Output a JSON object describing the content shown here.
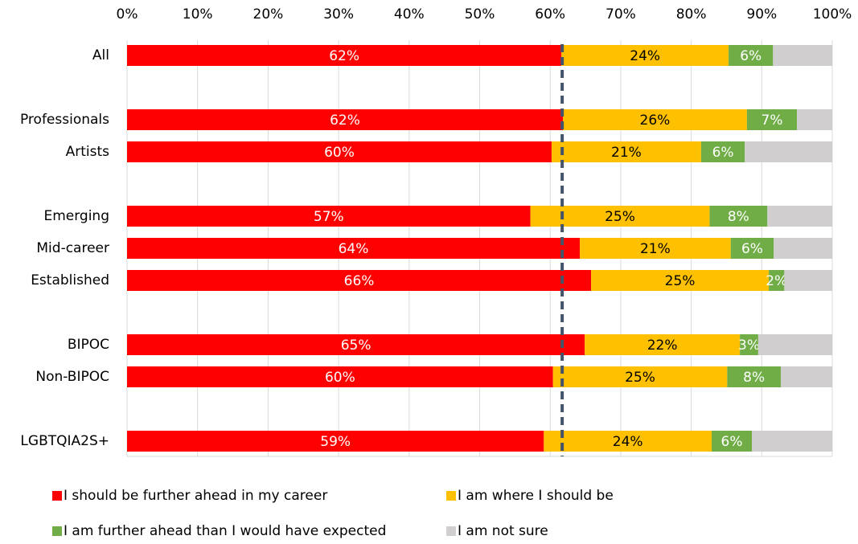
{
  "chart_data": {
    "type": "stacked-bar-horizontal",
    "categories": [
      "All",
      null,
      "Professionals",
      "Artists",
      null,
      "Emerging",
      "Mid-career",
      "Established",
      null,
      "BIPOC",
      "Non-BIPOC",
      null,
      "LGBTQIA2S+"
    ],
    "series": [
      {
        "name": "I should be further ahead in my career",
        "color": "#ff0000",
        "label_color": "#ffffff",
        "values": [
          61.6,
          null,
          61.8,
          60.2,
          null,
          57.2,
          64.2,
          65.8,
          null,
          64.9,
          60.4,
          null,
          59.1
        ],
        "value_labels": [
          "62%",
          null,
          "62%",
          "60%",
          null,
          "57%",
          "64%",
          "66%",
          null,
          "65%",
          "60%",
          null,
          "59%"
        ]
      },
      {
        "name": "I am where I should be",
        "color": "#ffc000",
        "label_color": "#000000",
        "values": [
          23.7,
          null,
          26.1,
          21.2,
          null,
          25.4,
          21.4,
          25.2,
          null,
          22.0,
          24.7,
          null,
          23.8
        ],
        "value_labels": [
          "24%",
          null,
          "26%",
          "21%",
          null,
          "25%",
          "21%",
          "25%",
          null,
          "22%",
          "25%",
          null,
          "24%"
        ]
      },
      {
        "name": "I am further ahead than I would have expected",
        "color": "#70ad47",
        "label_color": "#ffffff",
        "values": [
          6.3,
          null,
          7.1,
          6.2,
          null,
          8.2,
          6.1,
          2.2,
          null,
          2.6,
          7.6,
          null,
          5.7
        ],
        "value_labels": [
          "6%",
          null,
          "7%",
          "6%",
          null,
          "8%",
          "6%",
          "2%",
          null,
          "3%",
          "8%",
          null,
          "6%"
        ]
      },
      {
        "name": "I am not sure",
        "color": "#d0cece",
        "values": [
          8.4,
          null,
          5.0,
          12.4,
          null,
          9.2,
          8.3,
          6.8,
          null,
          10.5,
          7.3,
          null,
          11.4
        ]
      }
    ],
    "xlim": [
      0,
      100
    ],
    "xticks": [
      {
        "value": 0,
        "label": "0%"
      },
      {
        "value": 10,
        "label": "10%"
      },
      {
        "value": 20,
        "label": "20%"
      },
      {
        "value": 30,
        "label": "30%"
      },
      {
        "value": 40,
        "label": "40%"
      },
      {
        "value": 50,
        "label": "50%"
      },
      {
        "value": 60,
        "label": "60%"
      },
      {
        "value": 70,
        "label": "70%"
      },
      {
        "value": 80,
        "label": "80%"
      },
      {
        "value": 90,
        "label": "90%"
      },
      {
        "value": 100,
        "label": "100%"
      }
    ],
    "grid": true,
    "reference_line": 61.7,
    "legend": "bottom"
  }
}
